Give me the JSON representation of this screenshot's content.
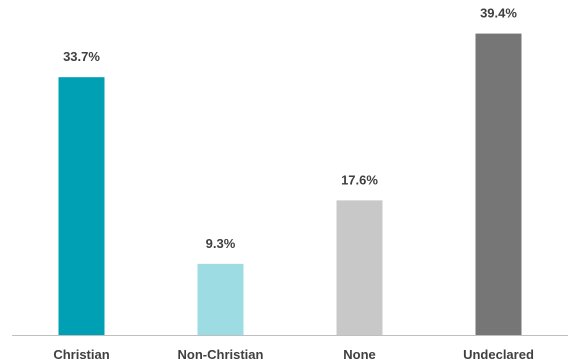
{
  "chart_data": {
    "type": "bar",
    "categories": [
      "Christian",
      "Non-Christian",
      "None",
      "Undeclared"
    ],
    "values": [
      33.7,
      9.3,
      17.6,
      39.4
    ],
    "data_labels": [
      "33.7%",
      "9.3%",
      "17.6%",
      "39.4%"
    ],
    "colors": [
      "#00A0B4",
      "#9DDCE3",
      "#C8C8C8",
      "#767676"
    ],
    "ylim": [
      0,
      40
    ],
    "grid": false,
    "legend": "none",
    "title": "",
    "xlabel": "",
    "ylabel": ""
  }
}
